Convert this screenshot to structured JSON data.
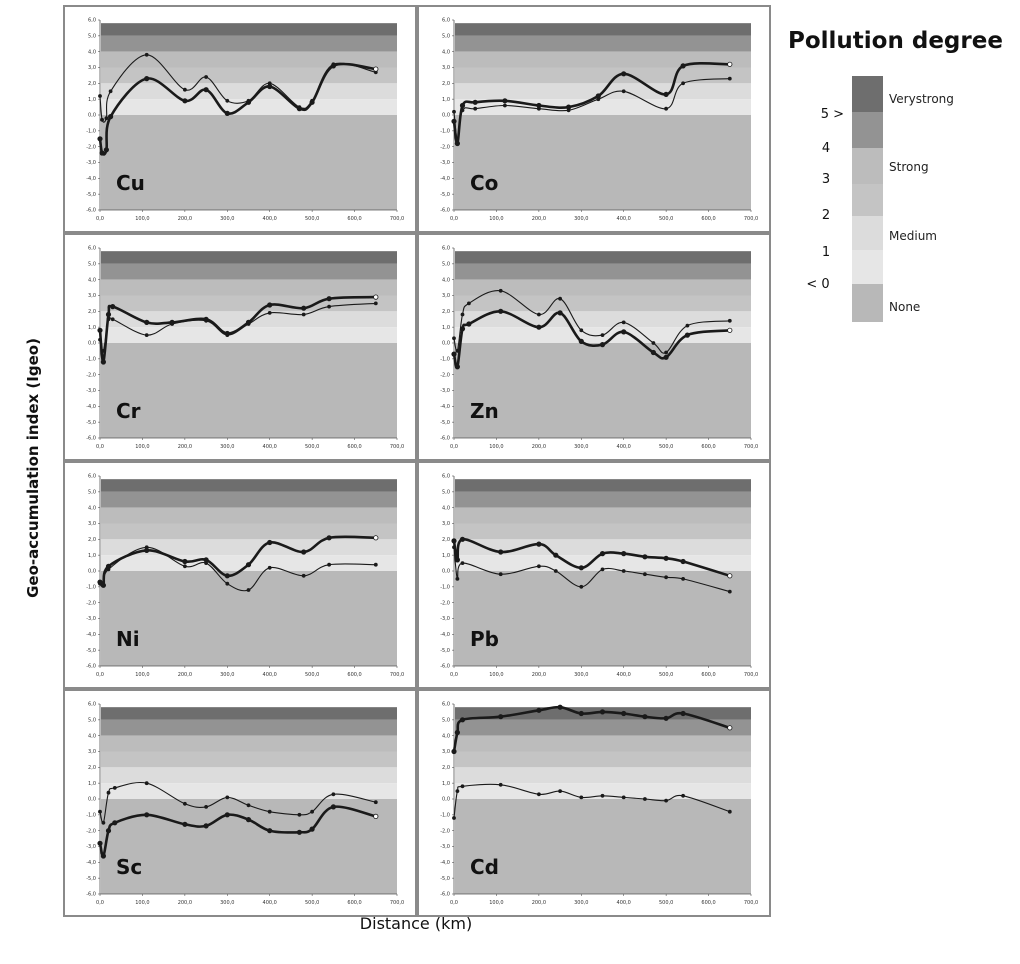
{
  "chart_data": {
    "type": "line",
    "xlabel": "Distance (km)",
    "ylabel": "Geo-accumulation index (Igeo)",
    "xlim": [
      0,
      700
    ],
    "ylim": [
      -6,
      6
    ],
    "x_ticks": [
      "0,0",
      "100,0",
      "200,0",
      "300,0",
      "400,0",
      "500,0",
      "600,0",
      "700,0"
    ],
    "y_ticks": [
      "6,0",
      "5,0",
      "4,0",
      "3,0",
      "2,0",
      "1,0",
      "0,0",
      "-1,0",
      "-2,0",
      "-3,0",
      "-4,0",
      "-5,0",
      "-6,0"
    ],
    "band_colors": {
      "very_strong": "#6e6e6e",
      "strong_upper": "#939393",
      "strong": "#bcbcbc",
      "strong_lower": "#c4c4c4",
      "medium": "#dcdcdc",
      "medium_lower": "#e6e6e6",
      "none": "#b8b8b8",
      "above": "#ffffff"
    },
    "panels": [
      {
        "label": "Cu",
        "series": [
          {
            "x": [
              0,
              5,
              15,
              25,
              110,
              200,
              250,
              300,
              350,
              400,
              470,
              500,
              550,
              650
            ],
            "y": [
              1.2,
              -0.3,
              -0.2,
              1.5,
              3.8,
              1.6,
              2.4,
              0.9,
              0.9,
              2.0,
              0.5,
              0.9,
              3.2,
              2.7
            ]
          },
          {
            "x": [
              0,
              5,
              15,
              25,
              110,
              200,
              250,
              300,
              350,
              400,
              470,
              500,
              550,
              650
            ],
            "y": [
              -1.5,
              -2.4,
              -2.2,
              -0.1,
              2.3,
              0.9,
              1.6,
              0.1,
              0.8,
              1.8,
              0.4,
              0.8,
              3.1,
              2.9
            ]
          }
        ]
      },
      {
        "label": "Co",
        "series": [
          {
            "x": [
              0,
              8,
              20,
              50,
              120,
              200,
              270,
              340,
              400,
              500,
              540,
              650
            ],
            "y": [
              0.2,
              -1.5,
              0.3,
              0.4,
              0.6,
              0.4,
              0.3,
              1.0,
              1.5,
              0.4,
              2.0,
              2.3
            ]
          },
          {
            "x": [
              0,
              8,
              20,
              50,
              120,
              200,
              270,
              340,
              400,
              500,
              540,
              650
            ],
            "y": [
              -0.4,
              -1.8,
              0.6,
              0.8,
              0.9,
              0.6,
              0.5,
              1.2,
              2.6,
              1.3,
              3.1,
              3.2
            ]
          }
        ]
      },
      {
        "label": "Cr",
        "series": [
          {
            "x": [
              0,
              8,
              20,
              30,
              110,
              170,
              250,
              300,
              350,
              400,
              480,
              540,
              650
            ],
            "y": [
              0.2,
              -0.5,
              1.5,
              1.5,
              0.5,
              1.2,
              1.4,
              0.5,
              1.2,
              1.9,
              1.8,
              2.3,
              2.5
            ]
          },
          {
            "x": [
              0,
              8,
              20,
              30,
              110,
              170,
              250,
              300,
              350,
              400,
              480,
              540,
              650
            ],
            "y": [
              0.8,
              -1.2,
              1.8,
              2.3,
              1.3,
              1.3,
              1.5,
              0.6,
              1.3,
              2.4,
              2.2,
              2.8,
              2.9
            ]
          }
        ]
      },
      {
        "label": "Zn",
        "series": [
          {
            "x": [
              0,
              8,
              20,
              35,
              110,
              200,
              250,
              300,
              350,
              400,
              470,
              500,
              550,
              650
            ],
            "y": [
              0.3,
              -0.5,
              1.8,
              2.5,
              3.3,
              1.8,
              2.8,
              0.8,
              0.5,
              1.3,
              0.0,
              -0.6,
              1.1,
              1.4
            ]
          },
          {
            "x": [
              0,
              8,
              20,
              35,
              110,
              200,
              250,
              300,
              350,
              400,
              470,
              500,
              550,
              650
            ],
            "y": [
              -0.7,
              -1.5,
              0.9,
              1.2,
              2.0,
              1.0,
              1.9,
              0.1,
              -0.1,
              0.7,
              -0.6,
              -0.9,
              0.5,
              0.8
            ]
          }
        ]
      },
      {
        "label": "Ni",
        "series": [
          {
            "x": [
              0,
              8,
              20,
              110,
              200,
              250,
              300,
              350,
              400,
              480,
              540,
              650
            ],
            "y": [
              -0.8,
              -0.9,
              0.1,
              1.5,
              0.3,
              0.5,
              -0.8,
              -1.2,
              0.2,
              -0.3,
              0.4,
              0.4
            ]
          },
          {
            "x": [
              0,
              8,
              20,
              110,
              200,
              250,
              300,
              350,
              400,
              480,
              540,
              650
            ],
            "y": [
              -0.7,
              -0.9,
              0.3,
              1.3,
              0.6,
              0.7,
              -0.3,
              0.4,
              1.8,
              1.2,
              2.1,
              2.1
            ]
          }
        ]
      },
      {
        "label": "Pb",
        "series": [
          {
            "x": [
              0,
              8,
              20,
              110,
              200,
              240,
              300,
              350,
              400,
              450,
              500,
              540,
              650
            ],
            "y": [
              1.5,
              -0.5,
              0.5,
              -0.2,
              0.3,
              0.0,
              -1.0,
              0.1,
              0.0,
              -0.2,
              -0.4,
              -0.5,
              -1.3
            ]
          },
          {
            "x": [
              0,
              8,
              20,
              110,
              200,
              240,
              300,
              350,
              400,
              450,
              500,
              540,
              650
            ],
            "y": [
              1.9,
              0.7,
              2.0,
              1.2,
              1.7,
              1.0,
              0.2,
              1.1,
              1.1,
              0.9,
              0.8,
              0.6,
              -0.3
            ]
          }
        ]
      },
      {
        "label": "Sc",
        "series": [
          {
            "x": [
              0,
              8,
              20,
              35,
              110,
              200,
              250,
              300,
              350,
              400,
              470,
              500,
              550,
              650
            ],
            "y": [
              -0.8,
              -1.5,
              0.4,
              0.7,
              1.0,
              -0.3,
              -0.5,
              0.1,
              -0.4,
              -0.8,
              -1.0,
              -0.8,
              0.3,
              -0.2
            ]
          },
          {
            "x": [
              0,
              8,
              20,
              35,
              110,
              200,
              250,
              300,
              350,
              400,
              470,
              500,
              550,
              650
            ],
            "y": [
              -2.8,
              -3.6,
              -2.0,
              -1.5,
              -1.0,
              -1.6,
              -1.7,
              -1.0,
              -1.3,
              -2.0,
              -2.1,
              -1.9,
              -0.5,
              -1.1
            ]
          }
        ]
      },
      {
        "label": "Cd",
        "series": [
          {
            "x": [
              0,
              8,
              20,
              110,
              200,
              250,
              300,
              350,
              400,
              450,
              500,
              540,
              650
            ],
            "y": [
              -1.2,
              0.5,
              0.8,
              0.9,
              0.3,
              0.5,
              0.1,
              0.2,
              0.1,
              0.0,
              -0.1,
              0.2,
              -0.8
            ]
          },
          {
            "x": [
              0,
              8,
              20,
              110,
              200,
              250,
              300,
              350,
              400,
              450,
              500,
              540,
              650
            ],
            "y": [
              3.0,
              4.2,
              5.0,
              5.2,
              5.6,
              5.8,
              5.4,
              5.5,
              5.4,
              5.2,
              5.1,
              5.4,
              4.5
            ]
          }
        ]
      }
    ]
  },
  "legend": {
    "title": "Pollution degree",
    "classes": [
      "Verystrong",
      "Strong",
      "Medium",
      "None"
    ],
    "levels": [
      "5 >",
      "4",
      "3",
      "2",
      "1",
      "< 0"
    ]
  }
}
